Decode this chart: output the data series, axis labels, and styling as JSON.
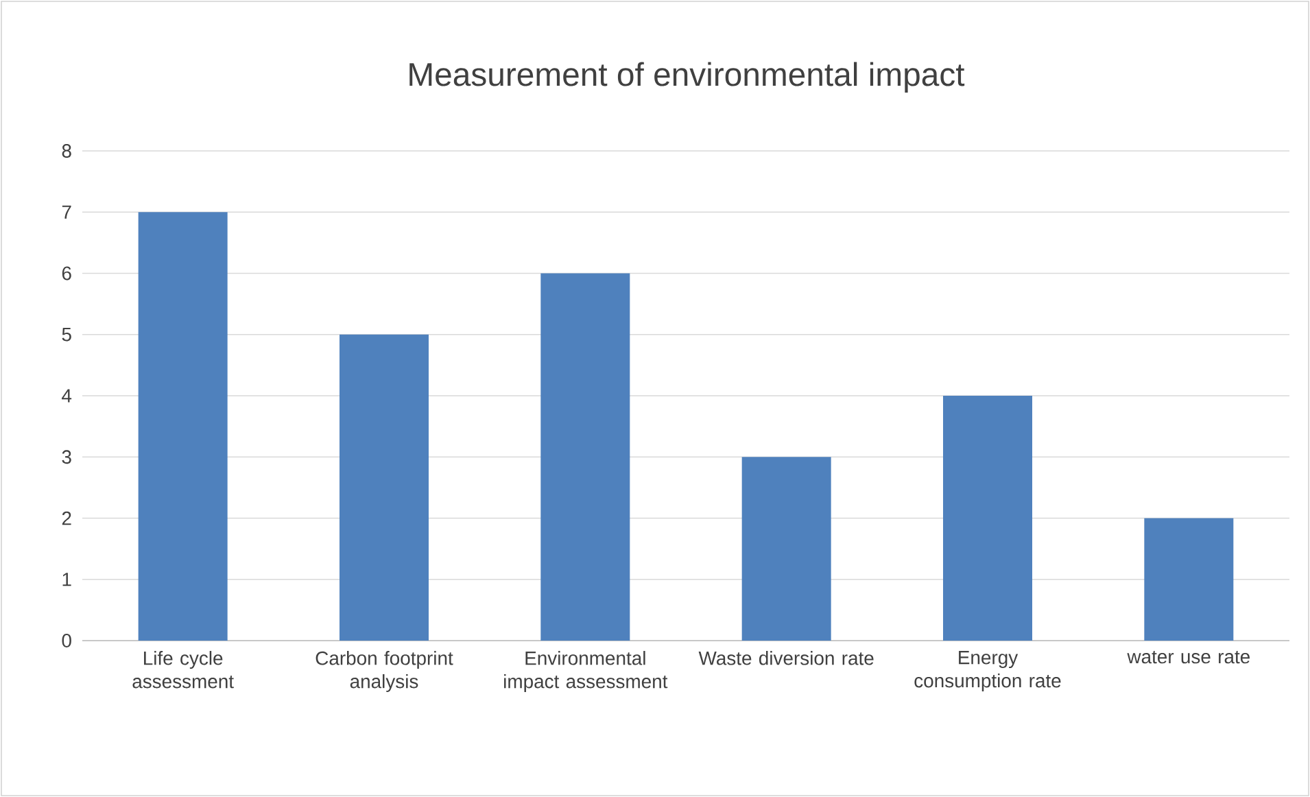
{
  "chart_data": {
    "type": "bar",
    "title": "Measurement of environmental impact",
    "categories": [
      "Life cycle assessment",
      "Carbon footprint analysis",
      "Environmental impact assessment",
      "Waste diversion rate",
      "Energy consumption rate",
      "water use rate"
    ],
    "values": [
      7,
      5,
      6,
      3,
      4,
      2
    ],
    "color": "#4f81bd",
    "ylim": [
      0,
      8
    ],
    "yticks": [
      0,
      1,
      2,
      3,
      4,
      5,
      6,
      7,
      8
    ],
    "grid": "y"
  }
}
